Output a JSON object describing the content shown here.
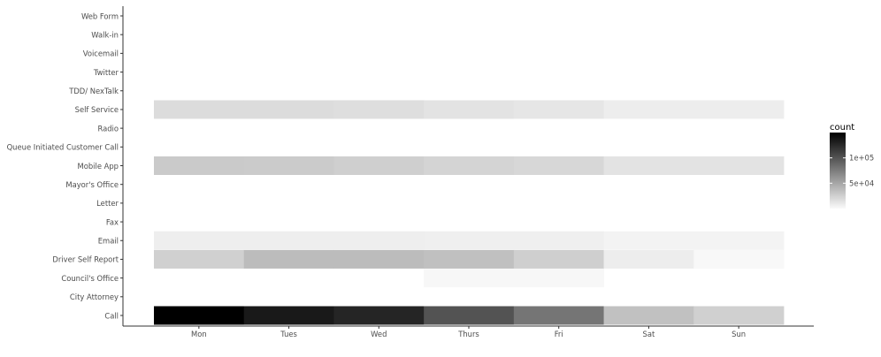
{
  "chart_data": {
    "type": "heatmap",
    "title": "",
    "xlabel": "",
    "ylabel": "",
    "x_categories": [
      "Mon",
      "Tues",
      "Wed",
      "Thurs",
      "Fri",
      "Sat",
      "Sun"
    ],
    "y_categories": [
      "Call",
      "City Attorney",
      "Council's Office",
      "Driver Self Report",
      "Email",
      "Fax",
      "Letter",
      "Mayor's Office",
      "Mobile App",
      "Queue Initiated Customer Call",
      "Radio",
      "Self Service",
      "TDD/ NexTalk",
      "Twitter",
      "Voicemail",
      "Walk-in",
      "Web Form"
    ],
    "cells": {
      "Call": [
        150000,
        135000,
        128000,
        100000,
        80000,
        34000,
        25000
      ],
      "City Attorney": [
        null,
        null,
        null,
        null,
        null,
        null,
        null
      ],
      "Council's Office": [
        null,
        null,
        null,
        2000,
        2000,
        null,
        null
      ],
      "Driver Self Report": [
        25000,
        37000,
        37000,
        35000,
        26000,
        8000,
        1500
      ],
      "Email": [
        7500,
        7500,
        7500,
        6500,
        6500,
        4500,
        4500
      ],
      "Fax": [
        null,
        null,
        null,
        null,
        null,
        null,
        null
      ],
      "Letter": [
        null,
        null,
        null,
        null,
        null,
        null,
        null
      ],
      "Mayor's Office": [
        null,
        null,
        null,
        null,
        null,
        null,
        null
      ],
      "Mobile App": [
        29000,
        28000,
        26000,
        23000,
        21000,
        14000,
        14000
      ],
      "Queue Initiated Customer Call": [
        null,
        null,
        null,
        null,
        null,
        null,
        null
      ],
      "Radio": [
        null,
        null,
        null,
        null,
        null,
        null,
        null
      ],
      "Self Service": [
        18000,
        18000,
        17000,
        14000,
        12000,
        8000,
        8000
      ],
      "TDD/ NexTalk": [
        null,
        null,
        null,
        null,
        null,
        null,
        null
      ],
      "Twitter": [
        null,
        null,
        null,
        null,
        null,
        null,
        null
      ],
      "Voicemail": [
        null,
        null,
        null,
        null,
        null,
        null,
        null
      ],
      "Walk-in": [
        null,
        null,
        null,
        null,
        null,
        null,
        null
      ],
      "Web Form": [
        null,
        null,
        null,
        null,
        null,
        null,
        null
      ]
    },
    "legend": {
      "title": "count",
      "ticks": [
        {
          "value": 50000,
          "label": "5e+04"
        },
        {
          "value": 100000,
          "label": "1e+05"
        }
      ],
      "range": [
        0,
        150000
      ],
      "low_color": "#ffffff",
      "high_color": "#000000",
      "placement": "right"
    },
    "grid": false
  }
}
